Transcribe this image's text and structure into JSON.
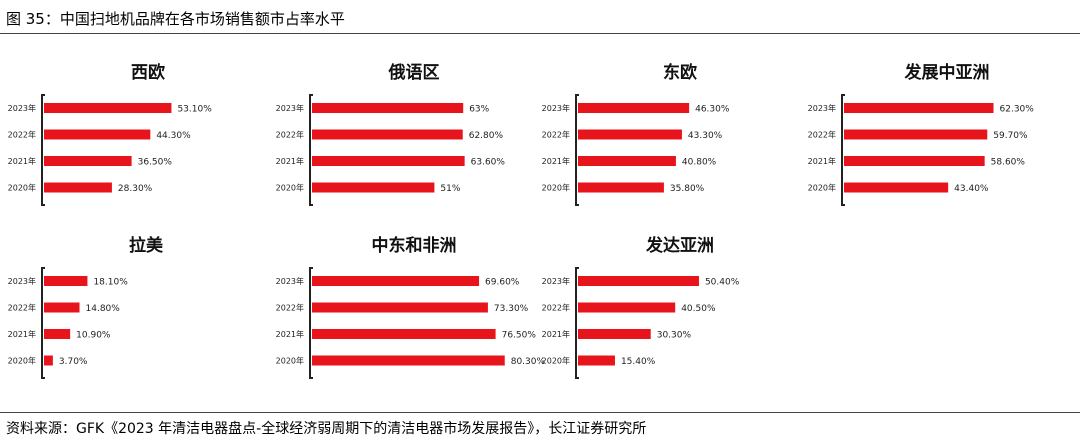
{
  "figure_title": "图  35：中国扫地机品牌在各市场销售额市占率水平",
  "source": "资料来源：GFK《2023 年清洁电器盘点-全球经济弱周期下的清洁电器市场发展报告》，长江证券研究所",
  "bar_color": "#e8141c",
  "chart_data": [
    {
      "type": "bar",
      "orientation": "horizontal",
      "title": "西欧",
      "categories": [
        "2023年",
        "2022年",
        "2021年",
        "2020年"
      ],
      "values": [
        53.1,
        44.3,
        36.5,
        28.3
      ],
      "labels": [
        "53.10%",
        "44.30%",
        "36.50%",
        "28.30%"
      ]
    },
    {
      "type": "bar",
      "orientation": "horizontal",
      "title": "俄语区",
      "categories": [
        "2023年",
        "2022年",
        "2021年",
        "2020年"
      ],
      "values": [
        63,
        62.8,
        63.6,
        51
      ],
      "labels": [
        "63%",
        "62.80%",
        "63.60%",
        "51%"
      ]
    },
    {
      "type": "bar",
      "orientation": "horizontal",
      "title": "东欧",
      "categories": [
        "2023年",
        "2022年",
        "2021年",
        "2020年"
      ],
      "values": [
        46.3,
        43.3,
        40.8,
        35.8
      ],
      "labels": [
        "46.30%",
        "43.30%",
        "40.80%",
        "35.80%"
      ]
    },
    {
      "type": "bar",
      "orientation": "horizontal",
      "title": "发展中亚洲",
      "categories": [
        "2023年",
        "2022年",
        "2021年",
        "2020年"
      ],
      "values": [
        62.3,
        59.7,
        58.6,
        43.4
      ],
      "labels": [
        "62.30%",
        "59.70%",
        "58.60%",
        "43.40%"
      ]
    },
    {
      "type": "bar",
      "orientation": "horizontal",
      "title": "拉美",
      "categories": [
        "2023年",
        "2022年",
        "2021年",
        "2020年"
      ],
      "values": [
        18.1,
        14.8,
        10.9,
        3.7
      ],
      "labels": [
        "18.10%",
        "14.80%",
        "10.90%",
        "3.70%"
      ]
    },
    {
      "type": "bar",
      "orientation": "horizontal",
      "title": "中东和非洲",
      "categories": [
        "2023年",
        "2022年",
        "2021年",
        "2020年"
      ],
      "values": [
        69.6,
        73.3,
        76.5,
        80.3
      ],
      "labels": [
        "69.60%",
        "73.30%",
        "76.50%",
        "80.30%"
      ]
    },
    {
      "type": "bar",
      "orientation": "horizontal",
      "title": "发达亚洲",
      "categories": [
        "2023年",
        "2022年",
        "2021年",
        "2020年"
      ],
      "values": [
        50.4,
        40.5,
        30.3,
        15.4
      ],
      "labels": [
        "50.40%",
        "40.50%",
        "30.30%",
        "15.40%"
      ]
    }
  ]
}
